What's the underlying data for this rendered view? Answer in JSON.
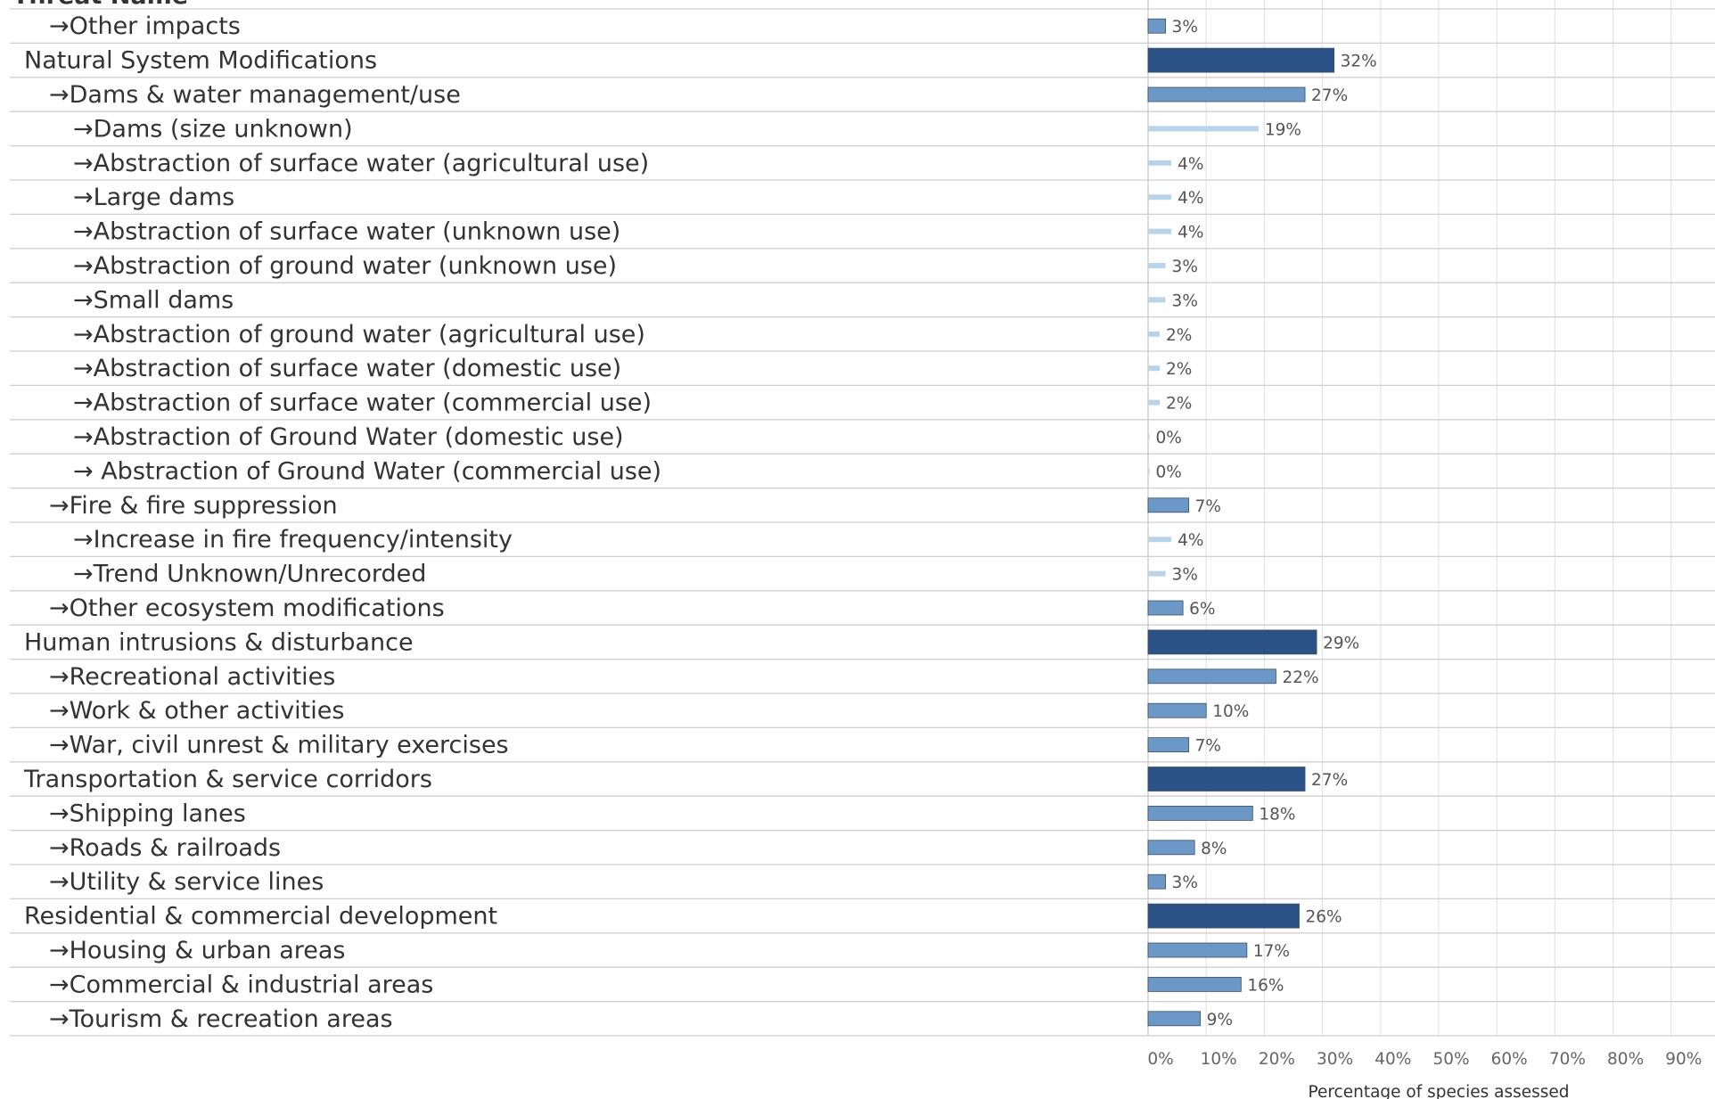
{
  "chart_data": {
    "type": "bar",
    "orientation": "horizontal",
    "header_label": "Threat Name",
    "xlabel": "Percentage of species assessed",
    "xlim": [
      0,
      90
    ],
    "ticks": [
      "0%",
      "10%",
      "20%",
      "30%",
      "40%",
      "50%",
      "60%",
      "70%",
      "80%",
      "90%"
    ],
    "grid": true,
    "level_colors": {
      "1": "#2a5286",
      "2": "#6b98c6",
      "3": "#b9d3e9"
    },
    "rows": [
      {
        "label": "→Other impacts",
        "level": 2,
        "value": 3,
        "text": "3%"
      },
      {
        "label": "Natural System Modifications",
        "level": 1,
        "value": 32,
        "text": "32%"
      },
      {
        "label": "→Dams & water management/use",
        "level": 2,
        "value": 27,
        "text": "27%"
      },
      {
        "label": "→Dams (size unknown)",
        "level": 3,
        "value": 19,
        "text": "19%"
      },
      {
        "label": "→Abstraction of surface water (agricultural use)",
        "level": 3,
        "value": 4,
        "text": "4%"
      },
      {
        "label": "→Large dams",
        "level": 3,
        "value": 4,
        "text": "4%"
      },
      {
        "label": "→Abstraction of surface water (unknown use)",
        "level": 3,
        "value": 4,
        "text": "4%"
      },
      {
        "label": "→Abstraction of ground water (unknown use)",
        "level": 3,
        "value": 3,
        "text": "3%"
      },
      {
        "label": "→Small dams",
        "level": 3,
        "value": 3,
        "text": "3%"
      },
      {
        "label": "→Abstraction of ground water (agricultural use)",
        "level": 3,
        "value": 2,
        "text": "2%"
      },
      {
        "label": "→Abstraction of surface water (domestic use)",
        "level": 3,
        "value": 2,
        "text": "2%"
      },
      {
        "label": "→Abstraction of surface water (commercial use)",
        "level": 3,
        "value": 2,
        "text": "2%"
      },
      {
        "label": "→Abstraction of Ground Water (domestic use)",
        "level": 3,
        "value": 0,
        "text": "0%"
      },
      {
        "label": "→ Abstraction of Ground Water (commercial use)",
        "level": 3,
        "value": 0,
        "text": "0%"
      },
      {
        "label": "→Fire & fire suppression",
        "level": 2,
        "value": 7,
        "text": "7%"
      },
      {
        "label": "→Increase in fire frequency/intensity",
        "level": 3,
        "value": 4,
        "text": "4%"
      },
      {
        "label": "→Trend Unknown/Unrecorded",
        "level": 3,
        "value": 3,
        "text": "3%"
      },
      {
        "label": "→Other ecosystem modifications",
        "level": 2,
        "value": 6,
        "text": "6%"
      },
      {
        "label": "Human intrusions & disturbance",
        "level": 1,
        "value": 29,
        "text": "29%"
      },
      {
        "label": "→Recreational activities",
        "level": 2,
        "value": 22,
        "text": "22%"
      },
      {
        "label": "→Work & other activities",
        "level": 2,
        "value": 10,
        "text": "10%"
      },
      {
        "label": "→War, civil unrest & military exercises",
        "level": 2,
        "value": 7,
        "text": "7%"
      },
      {
        "label": "Transportation & service corridors",
        "level": 1,
        "value": 27,
        "text": "27%"
      },
      {
        "label": "→Shipping lanes",
        "level": 2,
        "value": 18,
        "text": "18%"
      },
      {
        "label": "→Roads & railroads",
        "level": 2,
        "value": 8,
        "text": "8%"
      },
      {
        "label": "→Utility & service lines",
        "level": 2,
        "value": 3,
        "text": "3%"
      },
      {
        "label": "Residential & commercial development",
        "level": 1,
        "value": 26,
        "text": "26%"
      },
      {
        "label": "→Housing & urban areas",
        "level": 2,
        "value": 17,
        "text": "17%"
      },
      {
        "label": "→Commercial & industrial areas",
        "level": 2,
        "value": 16,
        "text": "16%"
      },
      {
        "label": "→Tourism & recreation areas",
        "level": 2,
        "value": 9,
        "text": "9%"
      }
    ]
  }
}
